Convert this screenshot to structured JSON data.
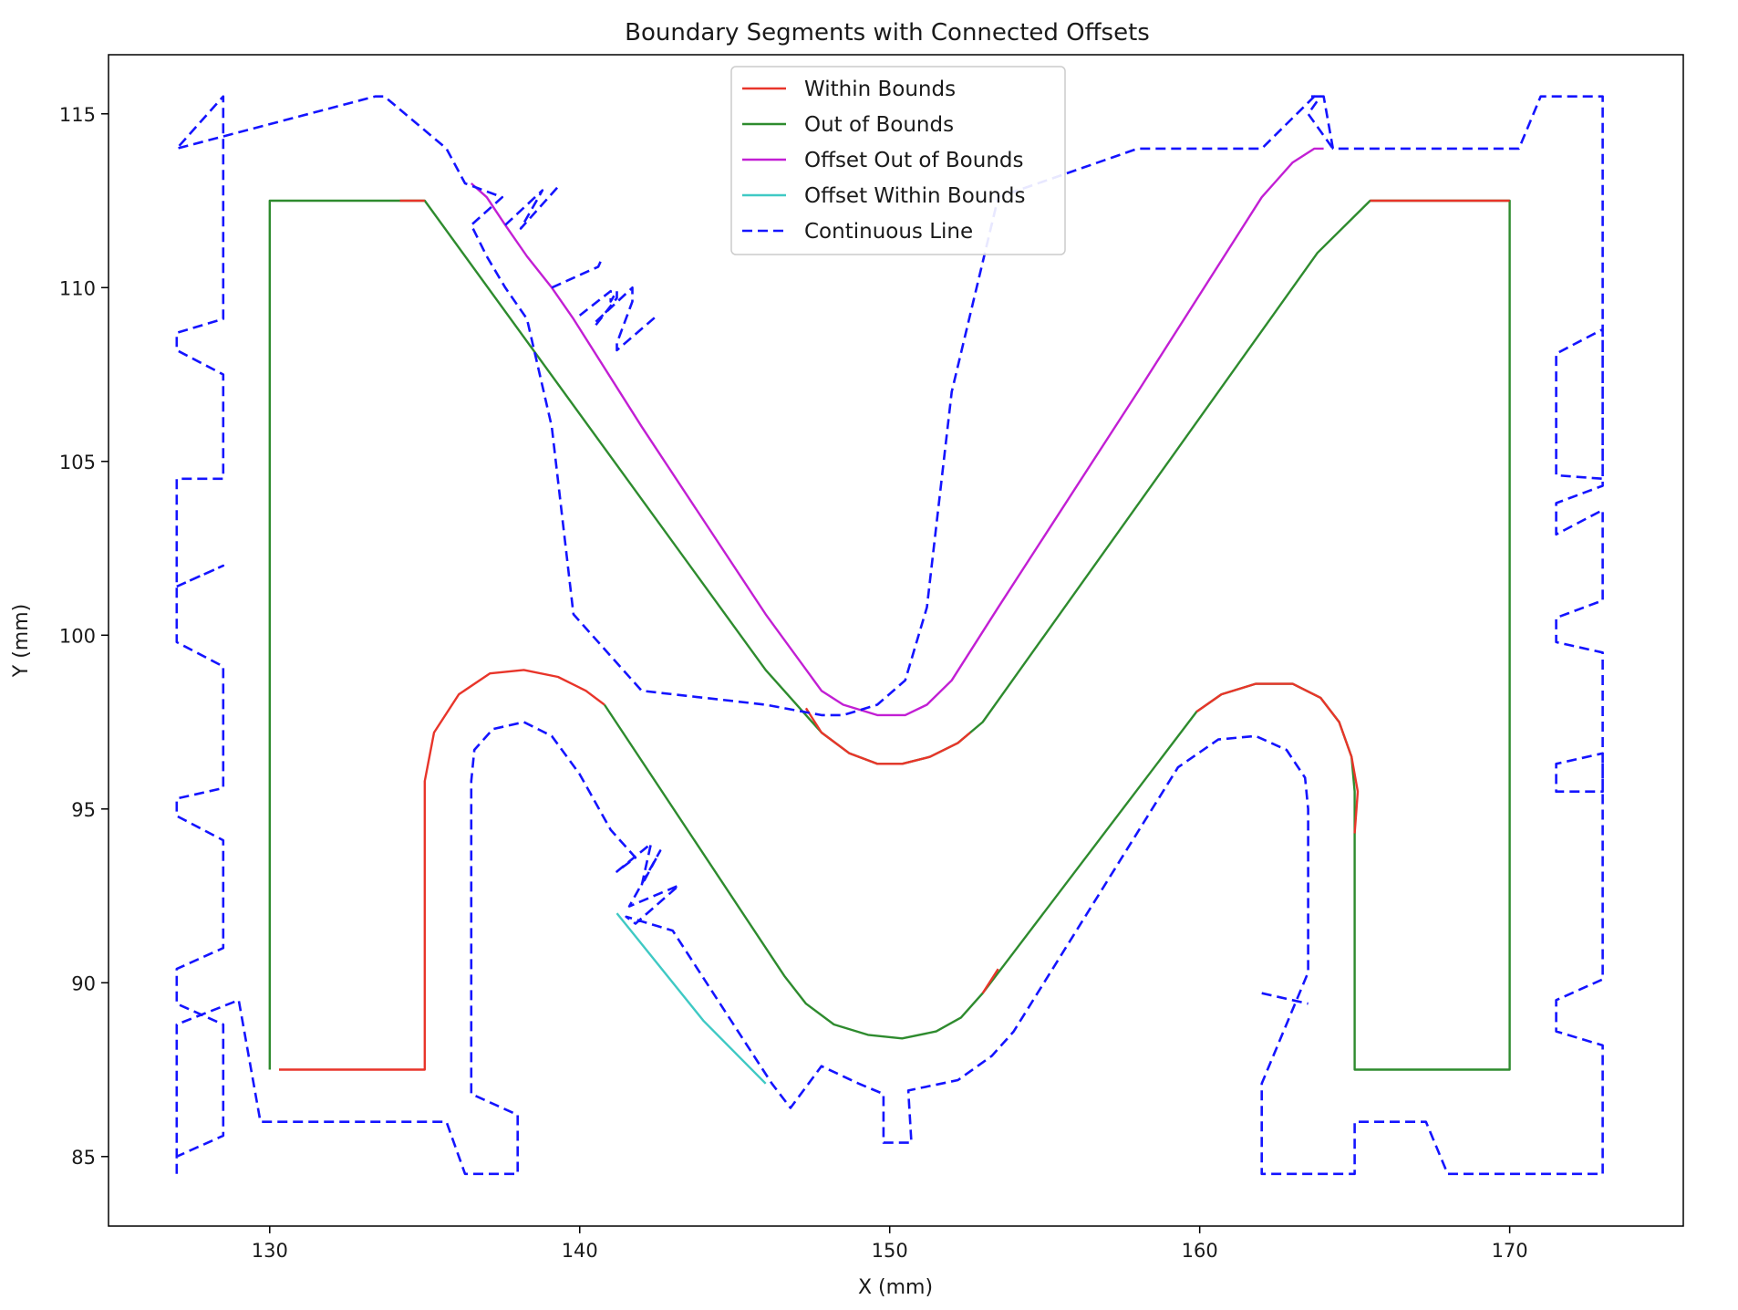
{
  "chart_data": {
    "type": "line",
    "title": "Boundary Segments with Connected Offsets",
    "xlabel": "X (mm)",
    "ylabel": "Y (mm)",
    "xlim": [
      124.8,
      175.6
    ],
    "ylim": [
      83.0,
      116.7
    ],
    "xticks": [
      130,
      140,
      150,
      160,
      170
    ],
    "yticks": [
      85,
      90,
      95,
      100,
      105,
      110,
      115
    ],
    "grid": false,
    "legend_position": "upper center",
    "legend": [
      {
        "label": "Within Bounds",
        "color": "#e8352a",
        "style": "solid"
      },
      {
        "label": "Out of Bounds",
        "color": "#2e8b2e",
        "style": "solid"
      },
      {
        "label": "Offset Out of Bounds",
        "color": "#c21fd4",
        "style": "solid"
      },
      {
        "label": "Offset Within Bounds",
        "color": "#3fc9c4",
        "style": "solid"
      },
      {
        "label": "Continuous Line",
        "color": "#1414ff",
        "style": "dashed"
      }
    ],
    "series": [
      {
        "name": "Out of Bounds",
        "color": "#2e8b2e",
        "style": "solid",
        "x": [
          130.0,
          130.0,
          135.0,
          146.0,
          147.8,
          148.7,
          149.6,
          150.4,
          151.3,
          152.2,
          153.0,
          163.8,
          165.5,
          170.0,
          170.0,
          165.0,
          165.0,
          164.9,
          164.5,
          163.9,
          163.0,
          161.8,
          160.7,
          159.9,
          153.0,
          152.3,
          151.5,
          150.4,
          149.3,
          148.2,
          147.3,
          146.6,
          140.8
        ],
        "y": [
          87.5,
          112.5,
          112.5,
          99.0,
          97.2,
          96.6,
          96.3,
          96.3,
          96.5,
          96.9,
          97.5,
          111.0,
          112.5,
          112.5,
          87.5,
          87.5,
          95.5,
          96.5,
          97.5,
          98.2,
          98.6,
          98.6,
          98.3,
          97.8,
          89.7,
          89.0,
          88.6,
          88.4,
          88.5,
          88.8,
          89.4,
          90.2,
          98.0
        ]
      },
      {
        "name": "Within Bounds",
        "color": "#e8352a",
        "style": "red-segments",
        "segments": [
          {
            "x": [
              130.3,
              135.0,
              135.0,
              135.3,
              136.1,
              137.1,
              138.2,
              139.3,
              140.2,
              140.8
            ],
            "y": [
              87.5,
              87.5,
              95.8,
              97.2,
              98.3,
              98.9,
              99.0,
              98.8,
              98.4,
              98.0
            ]
          },
          {
            "x": [
              147.3,
              147.8,
              148.7,
              149.6,
              150.4,
              151.3,
              152.2,
              152.6
            ],
            "y": [
              97.9,
              97.2,
              96.6,
              96.3,
              96.3,
              96.5,
              96.9,
              97.2
            ]
          },
          {
            "x": [
              165.5,
              170.0
            ],
            "y": [
              112.5,
              112.5
            ]
          },
          {
            "x": [
              134.2,
              135.0
            ],
            "y": [
              112.5,
              112.5
            ]
          },
          {
            "x": [
              165.0,
              165.1,
              164.9,
              164.5,
              163.9,
              163.0,
              161.8,
              160.7,
              159.9
            ],
            "y": [
              94.3,
              95.5,
              96.5,
              97.5,
              98.2,
              98.6,
              98.6,
              98.3,
              97.8
            ]
          },
          {
            "x": [
              153.0,
              153.5
            ],
            "y": [
              89.7,
              90.4
            ]
          }
        ]
      },
      {
        "name": "Offset Out of Bounds",
        "color": "#c21fd4",
        "style": "solid",
        "x": [
          136.5,
          137.0,
          137.6,
          138.3,
          139.1,
          139.8,
          142.0,
          146.0,
          147.8,
          148.5,
          149.6,
          150.5,
          151.2,
          152.0,
          153.5,
          158.0,
          162.0,
          163.0,
          163.7,
          164.0,
          164.0
        ],
        "y": [
          113.0,
          112.6,
          111.8,
          110.9,
          110.0,
          109.1,
          106.0,
          100.6,
          98.4,
          98.0,
          97.7,
          97.7,
          98.0,
          98.7,
          100.8,
          107.0,
          112.6,
          113.6,
          114.0,
          114.0,
          114.0
        ]
      },
      {
        "name": "Offset Within Bounds",
        "color": "#3fc9c4",
        "style": "solid",
        "x": [
          141.2,
          144.0,
          146.0
        ],
        "y": [
          92.0,
          88.9,
          87.1
        ]
      },
      {
        "name": "Continuous Line",
        "color": "#1414ff",
        "style": "dashed",
        "x": [
          127.0,
          127.0,
          129.0,
          129.7,
          135.7,
          136.3,
          138.0,
          138.0,
          136.5,
          136.5,
          136.6,
          137.2,
          138.2,
          139.1,
          140.0,
          141.0,
          141.8,
          141.2,
          142.3,
          142.0,
          142.6,
          141.6,
          143.2,
          141.8,
          141.5,
          143.0,
          146.2,
          146.8,
          147.8,
          149.0,
          149.8,
          149.8,
          150.7,
          150.6,
          152.2,
          153.3,
          154.0,
          159.3,
          160.6,
          161.8,
          162.8,
          163.4,
          163.5,
          163.5,
          162.0,
          162.0,
          165.0,
          165.0,
          167.3,
          168.0,
          173.0,
          173.0,
          171.5,
          171.5,
          173.0,
          173.0,
          171.5,
          171.5,
          173.0,
          173.0,
          171.5,
          171.5,
          173.0,
          173.0,
          171.5,
          171.5,
          173.0,
          173.0,
          171.5,
          171.5,
          173.0,
          173.0,
          171.0,
          170.3,
          164.3,
          164.0,
          163.7,
          162.0,
          158.0,
          153.5,
          152.0,
          151.2,
          150.5,
          149.6,
          148.5,
          147.8,
          146.0,
          142.0,
          139.8,
          139.1,
          138.3,
          137.6,
          137.0,
          136.5,
          137.5,
          136.3,
          135.7,
          133.7,
          133.4,
          127.0,
          127.0,
          128.5,
          128.5,
          127.0,
          127.0,
          128.5,
          128.5,
          127.0,
          127.0,
          128.5,
          128.5,
          127.0,
          127.0,
          128.5,
          128.5,
          127.0,
          127.0,
          128.5,
          128.5,
          127.0,
          127.0
        ],
        "y": [
          84.5,
          88.8,
          89.5,
          86.0,
          86.0,
          84.5,
          84.5,
          86.2,
          86.8,
          95.8,
          96.7,
          97.3,
          97.5,
          97.1,
          96.0,
          94.4,
          93.6,
          93.2,
          94.0,
          92.8,
          93.8,
          92.2,
          92.8,
          91.7,
          91.9,
          91.5,
          87.1,
          86.4,
          87.6,
          87.1,
          86.8,
          85.4,
          85.4,
          86.9,
          87.2,
          87.9,
          88.6,
          96.2,
          97.0,
          97.1,
          96.7,
          95.9,
          95.0,
          90.3,
          87.1,
          84.5,
          84.5,
          86.0,
          86.0,
          84.5,
          84.5,
          88.2,
          88.6,
          89.5,
          90.1,
          96.6,
          96.3,
          95.5,
          95.5,
          99.5,
          99.8,
          100.5,
          101.0,
          103.6,
          102.9,
          103.8,
          104.3,
          108.8,
          108.1,
          104.6,
          104.5,
          115.5,
          115.5,
          114.0,
          114.0,
          115.5,
          115.5,
          114.0,
          114.0,
          112.6,
          107.0,
          100.8,
          98.7,
          98.0,
          97.7,
          97.7,
          98.0,
          98.4,
          100.6,
          106.0,
          109.1,
          110.0,
          110.9,
          111.8,
          112.6,
          113.0,
          114.0,
          115.5,
          115.5,
          114.0,
          114.0,
          115.5,
          109.1,
          108.7,
          108.2,
          107.5,
          104.5,
          104.5,
          99.8,
          99.1,
          95.6,
          95.3,
          94.8,
          94.1,
          91.0,
          90.4,
          89.4,
          88.8,
          85.6,
          85.0,
          84.5
        ]
      },
      {
        "name": "Continuous Line (loops)",
        "color": "#1414ff",
        "style": "dashed",
        "segments": [
          {
            "x": [
              137.6,
              138.8,
              138.1,
              139.3
            ],
            "y": [
              111.8,
              112.8,
              111.7,
              112.9
            ]
          },
          {
            "x": [
              139.1,
              140.6,
              140.7
            ],
            "y": [
              110.0,
              110.6,
              110.8
            ]
          },
          {
            "x": [
              140.0,
              141.0,
              141.0,
              141.2,
              141.2,
              140.5,
              140.5,
              141.7,
              141.7,
              141.2,
              141.2,
              142.5
            ],
            "y": [
              109.2,
              109.9,
              109.6,
              109.9,
              109.7,
              108.9,
              109.0,
              110.0,
              109.6,
              108.4,
              108.2,
              109.2
            ]
          },
          {
            "x": [
              127.0,
              128.5,
              127.0
            ],
            "y": [
              101.4,
              102.0,
              101.4
            ]
          },
          {
            "x": [
              162.0,
              163.5
            ],
            "y": [
              89.7,
              89.4
            ]
          },
          {
            "x": [
              163.6,
              163.9,
              163.5,
              164.3
            ],
            "y": [
              115.5,
              115.5,
              115.0,
              114.0
            ]
          }
        ]
      }
    ]
  }
}
